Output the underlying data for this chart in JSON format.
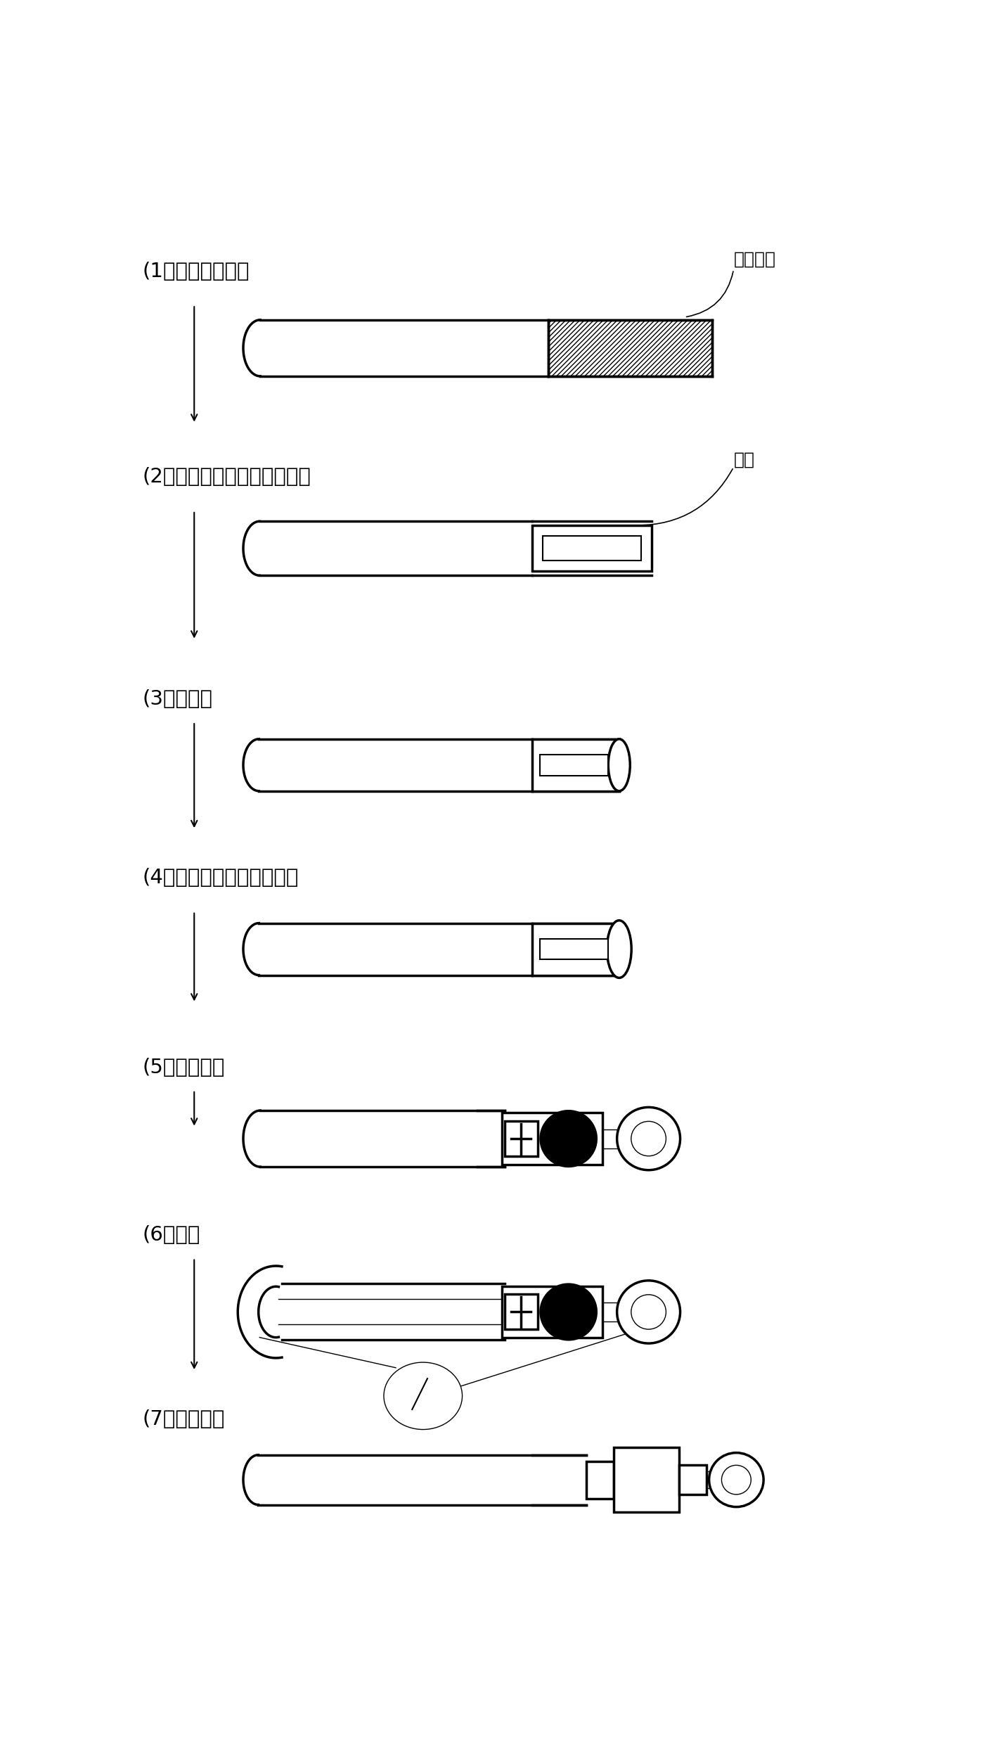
{
  "bg_color": "#ffffff",
  "lw_thick": 2.5,
  "lw_med": 1.5,
  "lw_thin": 1.0,
  "step_labels": [
    "(1) 切割端部绝缘",
    "(2) 固定端部芯线使成一整体",
    "(3) 切斜面",
    "(4) 焊接铜套管与芯线端面",
    "(5) 连接焊片",
    "(6) 检验",
    "(7) 绝缘处理"
  ],
  "annot1": "切去绝缘",
  "annot2": "挤压"
}
